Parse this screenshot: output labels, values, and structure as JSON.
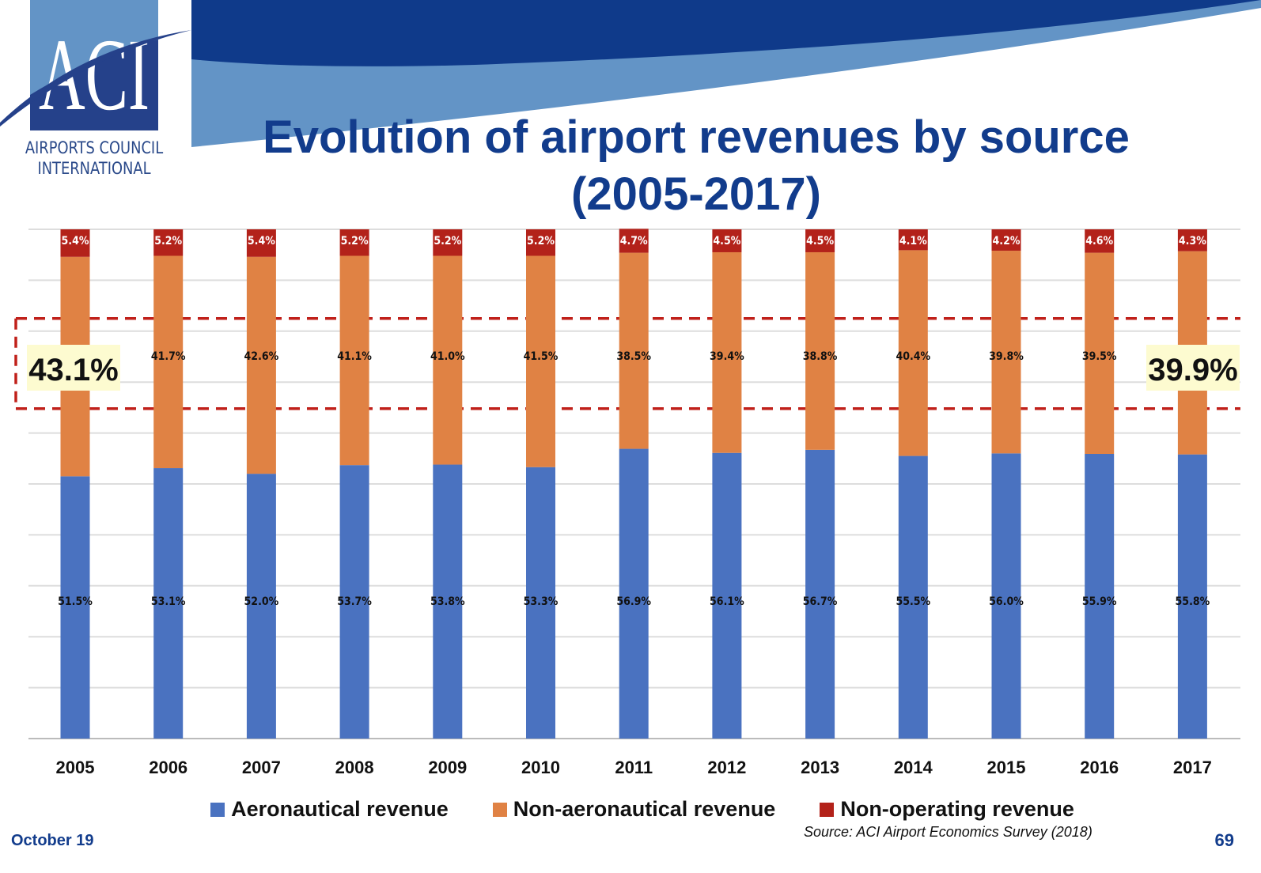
{
  "header": {
    "logo_text": "ACI",
    "org_line1": "AIRPORTS COUNCIL",
    "org_line2": "INTERNATIONAL",
    "title_line1": "Evolution of airport revenues by source",
    "title_line2": "(2005-2017)"
  },
  "chart_data": {
    "type": "bar",
    "stacked": true,
    "categories": [
      "2005",
      "2006",
      "2007",
      "2008",
      "2009",
      "2010",
      "2011",
      "2012",
      "2013",
      "2014",
      "2015",
      "2016",
      "2017"
    ],
    "series": [
      {
        "name": "Aeronautical revenue",
        "color": "#4a72c0",
        "values": [
          51.5,
          53.1,
          52.0,
          53.7,
          53.8,
          53.3,
          56.9,
          56.1,
          56.7,
          55.5,
          56.0,
          55.9,
          55.8
        ]
      },
      {
        "name": "Non-aeronautical revenue",
        "color": "#e08244",
        "values": [
          43.1,
          41.7,
          42.6,
          41.1,
          41.0,
          41.5,
          38.5,
          39.4,
          38.8,
          40.4,
          39.8,
          39.5,
          39.9
        ]
      },
      {
        "name": "Non-operating revenue",
        "color": "#b3221a",
        "values": [
          5.4,
          5.2,
          5.4,
          5.2,
          5.2,
          5.2,
          4.7,
          4.5,
          4.5,
          4.1,
          4.2,
          4.6,
          4.3
        ]
      }
    ],
    "ylim": [
      0,
      100
    ],
    "grid": true,
    "legend": "bottom",
    "highlights": [
      {
        "category": "2005",
        "label": "43.1%"
      },
      {
        "category": "2017",
        "label": "39.9%"
      }
    ]
  },
  "footer": {
    "date": "October 19",
    "source": "Source: ACI Airport Economics Survey (2018)",
    "page": "69"
  }
}
